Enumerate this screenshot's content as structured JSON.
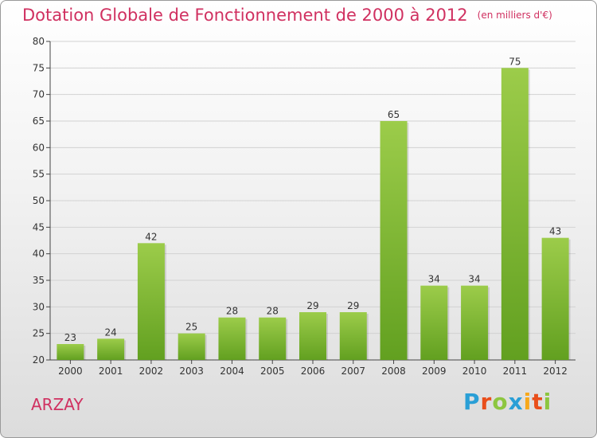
{
  "header": {
    "title": "Dotation Globale de Fonctionnement de 2000 à 2012",
    "subtitle": "(en milliers d'€)"
  },
  "commune": "ARZAY",
  "logo": {
    "text": "Proxiti",
    "letter_colors": [
      "#2a9fd6",
      "#e94e1b",
      "#8dc63f",
      "#2a9fd6",
      "#f7a81b",
      "#e94e1b",
      "#8dc63f"
    ]
  },
  "chart_data": {
    "type": "bar",
    "categories": [
      "2000",
      "2001",
      "2002",
      "2003",
      "2004",
      "2005",
      "2006",
      "2007",
      "2008",
      "2009",
      "2010",
      "2011",
      "2012"
    ],
    "values": [
      23,
      24,
      42,
      25,
      28,
      28,
      29,
      29,
      65,
      34,
      34,
      75,
      43
    ],
    "ylim": [
      20,
      80
    ],
    "yticks": [
      20,
      25,
      30,
      35,
      40,
      45,
      50,
      55,
      60,
      65,
      70,
      75,
      80
    ],
    "grid": true,
    "bar_color_top": "#9ccc4a",
    "bar_color_bottom": "#62a020"
  }
}
